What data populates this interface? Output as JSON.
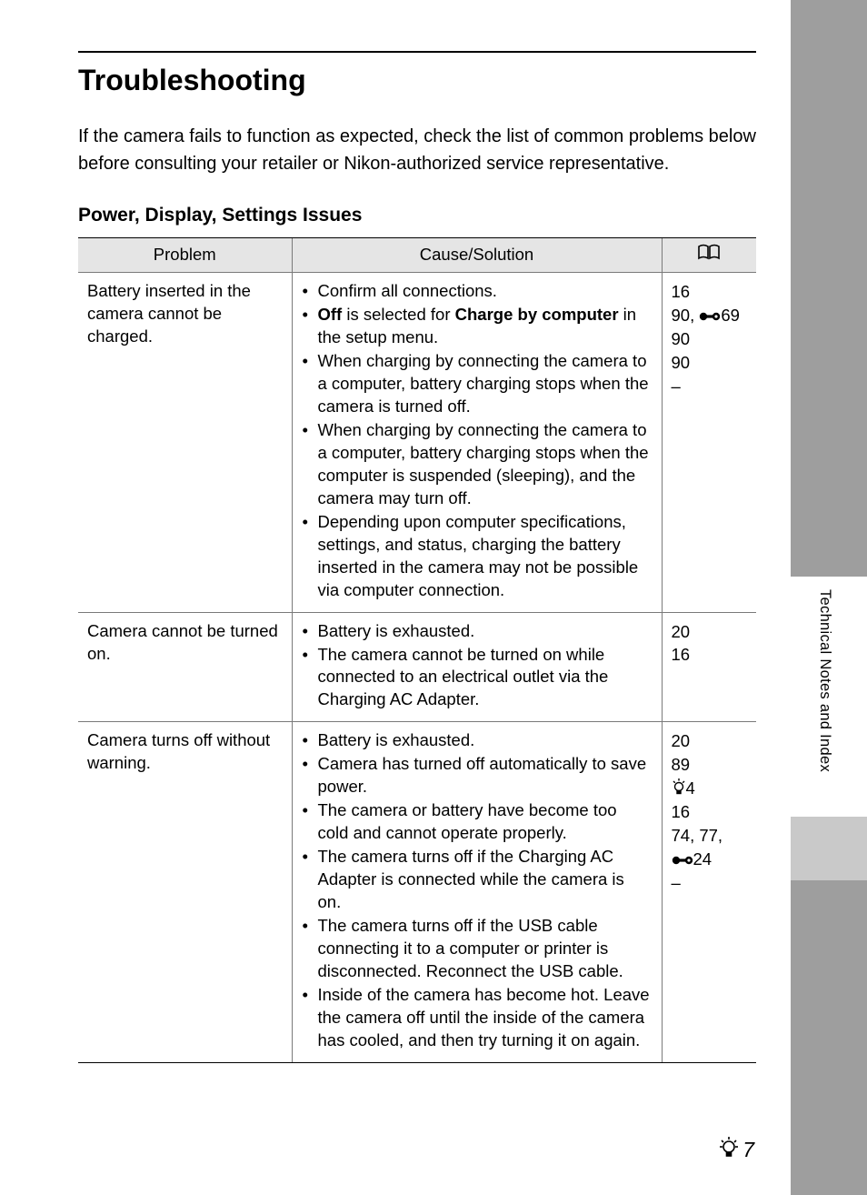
{
  "page_title": "Troubleshooting",
  "intro": "If the camera fails to function as expected, check the list of common problems below before consulting your retailer or Nikon-authorized service representative.",
  "section_title": "Power, Display, Settings Issues",
  "headers": {
    "problem": "Problem",
    "solution": "Cause/Solution",
    "ref_icon": "book-icon"
  },
  "rows": [
    {
      "problem": "Battery inserted in the camera cannot be charged.",
      "solutions": [
        {
          "text": "Confirm all connections."
        },
        {
          "html": "<span class='bold'>Off</span> is selected for <span class='bold'>Charge by computer</span> in the setup menu."
        },
        {
          "text": "When charging by connecting the camera to a computer, battery charging stops when the camera is turned off."
        },
        {
          "text": "When charging by connecting the camera to a computer, battery charging stops when the computer is suspended (sleeping), and the camera may turn off."
        },
        {
          "text": "Depending upon computer specifications, settings, and status, charging the battery inserted in the camera may not be possible via computer connection."
        }
      ],
      "refs": [
        {
          "text": "16"
        },
        {
          "text": "90, ",
          "icon": "disc",
          "after": "69"
        },
        {
          "text": "90"
        },
        {
          "text": "90"
        },
        {
          "text": "–"
        }
      ]
    },
    {
      "problem": "Camera cannot be turned on.",
      "solutions": [
        {
          "text": "Battery is exhausted."
        },
        {
          "text": "The camera cannot be turned on while connected to an electrical outlet via the Charging AC Adapter."
        }
      ],
      "refs": [
        {
          "text": "20"
        },
        {
          "text": "16"
        }
      ]
    },
    {
      "problem": "Camera turns off without warning.",
      "solutions": [
        {
          "text": "Battery is exhausted."
        },
        {
          "text": "Camera has turned off automatically to save power."
        },
        {
          "text": "The camera or battery have become too cold and cannot operate properly."
        },
        {
          "text": "The camera turns off if the Charging AC Adapter is connected while the camera is on."
        },
        {
          "text": "The camera turns off if the USB cable connecting it to a computer or printer is disconnected. Reconnect the USB cable."
        },
        {
          "text": "Inside of the camera has become hot. Leave the camera off until the inside of the camera has cooled, and then try turning it on again."
        }
      ],
      "refs": [
        {
          "text": "20"
        },
        {
          "text": "89"
        },
        {
          "icon": "bulb",
          "after": "4"
        },
        {
          "text": "16"
        },
        {
          "text": "74, 77, ",
          "br": true,
          "icon2": "disc",
          "after2": "24"
        },
        {
          "text": "–"
        }
      ]
    }
  ],
  "side_tab": "Technical Notes and Index",
  "page_number": "7",
  "colors": {
    "page_bg": "#ffffff",
    "outer_bg": "#9e9e9e",
    "header_bg": "#e5e5e5",
    "border": "#7a7a7a",
    "strong_border": "#000000",
    "tab_gray": "#c9c9c9"
  }
}
